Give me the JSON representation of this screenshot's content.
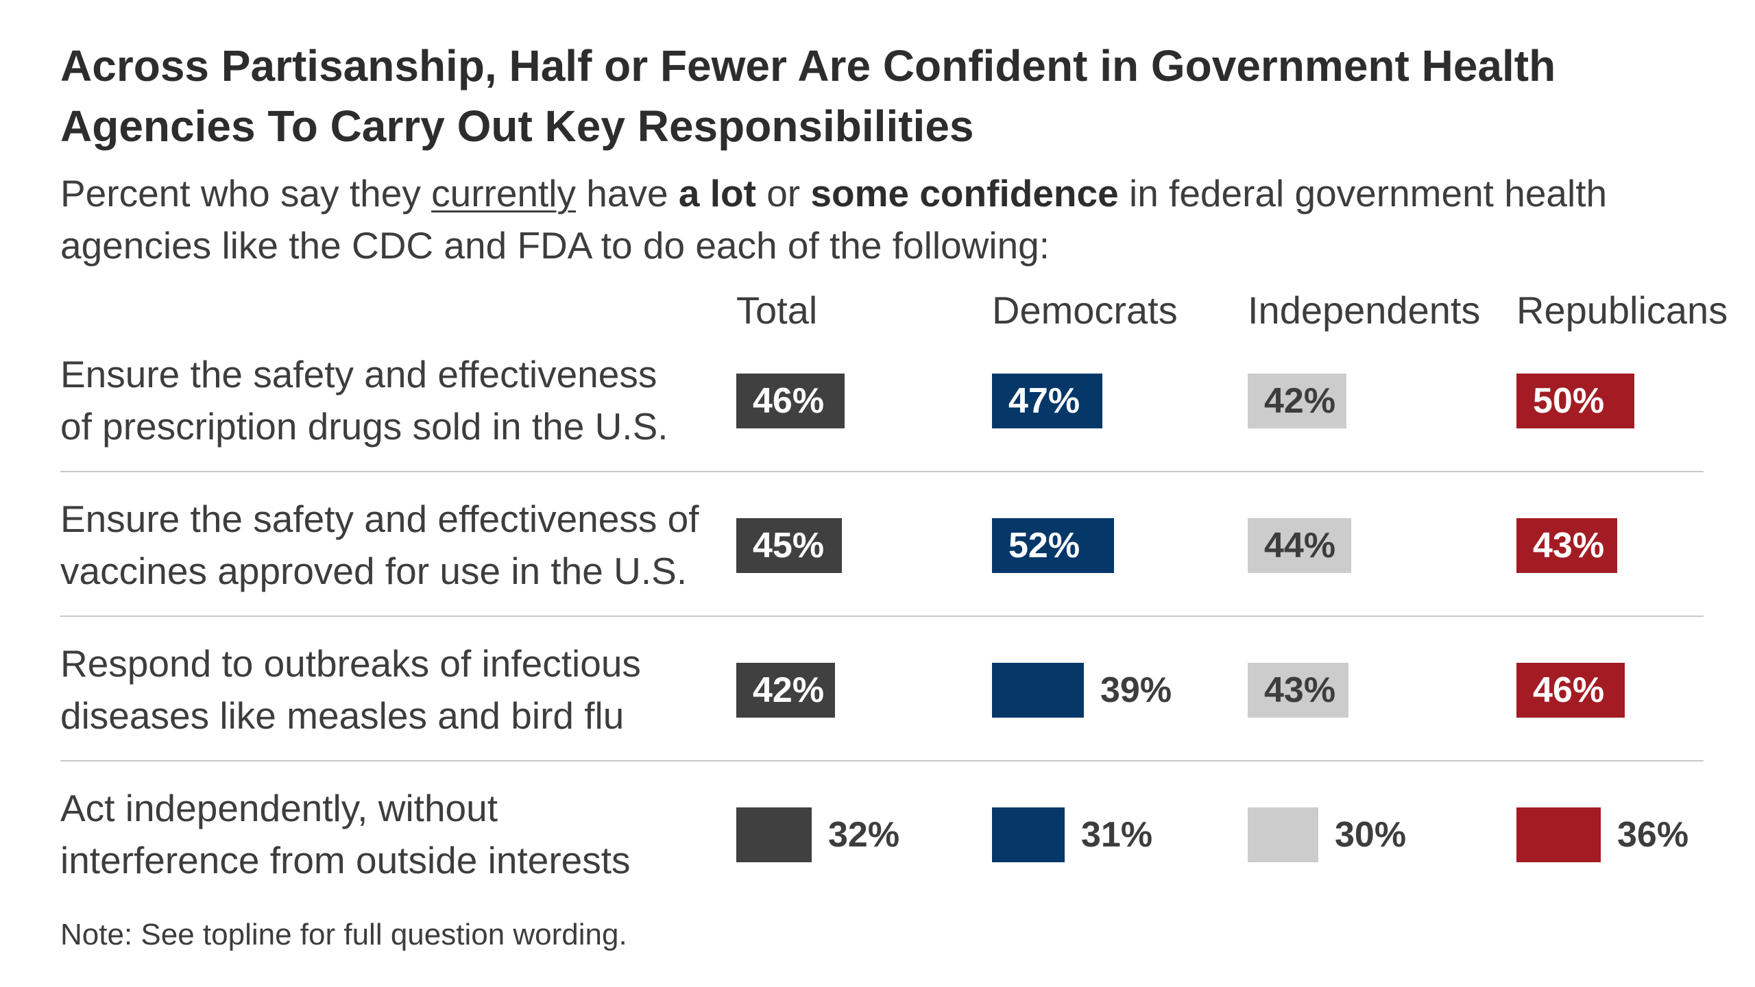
{
  "chart_data": {
    "type": "bar",
    "title": "Across Partisanship, Half or Fewer Are Confident in Government Health Agencies To Carry Out Key Responsibilities",
    "subtitle": {
      "pre": "Percent who say they ",
      "underlined": "currently",
      "mid1": " have ",
      "bold1": "a lot",
      "mid2": " or ",
      "bold2": "some confidence",
      "post": " in federal government health agencies like the CDC and FDA to do each of the following:"
    },
    "categories": [
      [
        "Ensure the safety and effectiveness",
        "of prescription drugs sold in the U.S."
      ],
      [
        "Ensure the safety and effectiveness of",
        "vaccines approved for use in the U.S."
      ],
      [
        "Respond to outbreaks of infectious",
        "diseases like measles and bird flu"
      ],
      [
        "Act independently, without",
        "interference from outside interests"
      ]
    ],
    "series": [
      {
        "name": "Total",
        "color": "#404040",
        "label_color": "#ffffff",
        "values": [
          46,
          45,
          42,
          32
        ]
      },
      {
        "name": "Democrats",
        "color": "#053769",
        "label_color": "#ffffff",
        "values": [
          47,
          52,
          39,
          31
        ]
      },
      {
        "name": "Independents",
        "color": "#cccccc",
        "label_color": "#3d3d3d",
        "values": [
          42,
          44,
          43,
          30
        ]
      },
      {
        "name": "Republicans",
        "color": "#a31c24",
        "label_color": "#ffffff",
        "values": [
          50,
          43,
          46,
          36
        ]
      }
    ],
    "value_suffix": "%",
    "grid": false,
    "note": "Note: See topline for full question wording."
  }
}
